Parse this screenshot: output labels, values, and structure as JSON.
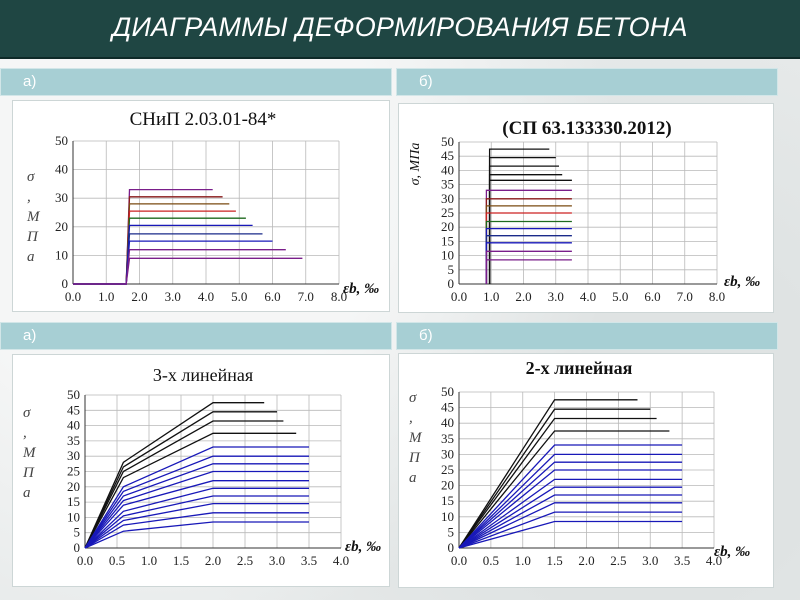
{
  "page": {
    "title": "ДИАГРАММЫ ДЕФОРМИРОВАНИЯ БЕТОНА"
  },
  "labels": {
    "row1_left": "а)",
    "row1_right": "б)",
    "row2_left": "а)",
    "row2_right": "б)"
  },
  "colors": {
    "title_bar": "#1f4643",
    "label_bar": "#a7cfd4",
    "black": "#111111",
    "blue": "#1818b8",
    "purple": "#7a1e8a",
    "dark_red": "#8a1a1a",
    "brown": "#7a4a10",
    "green": "#1e6a1e",
    "red": "#cc2222",
    "navy": "#1a2a8a"
  },
  "chart_data": [
    {
      "type": "line",
      "title": "СНиП 2.03.01-84*",
      "ylabel": "σ, МПа",
      "xlabel": "εb, ‰",
      "xlim": [
        0,
        8
      ],
      "ylim": [
        0,
        50
      ],
      "xticks": [
        "0.0",
        "1.0",
        "2.0",
        "3.0",
        "4.0",
        "5.0",
        "6.0",
        "7.0",
        "8.0"
      ],
      "yticks": [
        "0",
        "10",
        "20",
        "30",
        "40",
        "50"
      ],
      "grid": true,
      "series": [
        {
          "color": "purple",
          "values": [
            [
              0,
              0
            ],
            [
              1.6,
              0
            ],
            [
              1.7,
              33
            ],
            [
              4.2,
              33
            ]
          ]
        },
        {
          "color": "dark_red",
          "values": [
            [
              0,
              0
            ],
            [
              1.6,
              0
            ],
            [
              1.7,
              30.5
            ],
            [
              4.5,
              30.5
            ]
          ]
        },
        {
          "color": "brown",
          "values": [
            [
              0,
              0
            ],
            [
              1.6,
              0
            ],
            [
              1.7,
              28
            ],
            [
              4.7,
              28
            ]
          ]
        },
        {
          "color": "red",
          "values": [
            [
              0,
              0
            ],
            [
              1.6,
              0
            ],
            [
              1.7,
              25.5
            ],
            [
              4.9,
              25.5
            ]
          ]
        },
        {
          "color": "green",
          "values": [
            [
              0,
              0
            ],
            [
              1.6,
              0
            ],
            [
              1.7,
              23
            ],
            [
              5.2,
              23
            ]
          ]
        },
        {
          "color": "blue",
          "values": [
            [
              0,
              0
            ],
            [
              1.6,
              0
            ],
            [
              1.7,
              20.5
            ],
            [
              5.4,
              20.5
            ]
          ]
        },
        {
          "color": "navy",
          "values": [
            [
              0,
              0
            ],
            [
              1.6,
              0
            ],
            [
              1.7,
              17.5
            ],
            [
              5.7,
              17.5
            ]
          ]
        },
        {
          "color": "blue",
          "values": [
            [
              0,
              0
            ],
            [
              1.6,
              0
            ],
            [
              1.7,
              15
            ],
            [
              6.0,
              15
            ]
          ]
        },
        {
          "color": "purple",
          "values": [
            [
              0,
              0
            ],
            [
              1.6,
              0
            ],
            [
              1.7,
              12
            ],
            [
              6.4,
              12
            ]
          ]
        },
        {
          "color": "purple",
          "values": [
            [
              0,
              0
            ],
            [
              1.6,
              0
            ],
            [
              1.7,
              9
            ],
            [
              6.9,
              9
            ]
          ]
        }
      ]
    },
    {
      "type": "line",
      "title": "(СП 63.133330.2012)",
      "ylabel": "σ, МПа",
      "xlabel": "εb, ‰",
      "xlim": [
        0,
        8
      ],
      "ylim": [
        0,
        50
      ],
      "xticks": [
        "0.0",
        "1.0",
        "2.0",
        "3.0",
        "4.0",
        "5.0",
        "6.0",
        "7.0",
        "8.0"
      ],
      "yticks": [
        "0",
        "5",
        "10",
        "15",
        "20",
        "25",
        "30",
        "35",
        "40",
        "45",
        "50"
      ],
      "grid": true,
      "series": [
        {
          "color": "black",
          "values": [
            [
              0.95,
              0
            ],
            [
              0.95,
              47.5
            ],
            [
              2.8,
              47.5
            ]
          ]
        },
        {
          "color": "black",
          "values": [
            [
              0.95,
              0
            ],
            [
              0.95,
              44.5
            ],
            [
              3.0,
              44.5
            ]
          ]
        },
        {
          "color": "black",
          "values": [
            [
              0.95,
              0
            ],
            [
              0.95,
              41.5
            ],
            [
              3.1,
              41.5
            ]
          ]
        },
        {
          "color": "black",
          "values": [
            [
              0.95,
              0
            ],
            [
              0.95,
              38.5
            ],
            [
              3.2,
              38.5
            ]
          ]
        },
        {
          "color": "black",
          "values": [
            [
              0.95,
              0
            ],
            [
              0.95,
              36.5
            ],
            [
              3.5,
              36.5
            ]
          ]
        },
        {
          "color": "purple",
          "values": [
            [
              0.85,
              0
            ],
            [
              0.85,
              33
            ],
            [
              3.5,
              33
            ]
          ]
        },
        {
          "color": "dark_red",
          "values": [
            [
              0.85,
              0
            ],
            [
              0.85,
              30
            ],
            [
              3.5,
              30
            ]
          ]
        },
        {
          "color": "brown",
          "values": [
            [
              0.85,
              0
            ],
            [
              0.85,
              27.5
            ],
            [
              3.5,
              27.5
            ]
          ]
        },
        {
          "color": "red",
          "values": [
            [
              0.85,
              0
            ],
            [
              0.85,
              25
            ],
            [
              3.5,
              25
            ]
          ]
        },
        {
          "color": "green",
          "values": [
            [
              0.85,
              0
            ],
            [
              0.85,
              22
            ],
            [
              3.5,
              22
            ]
          ]
        },
        {
          "color": "blue",
          "values": [
            [
              0.85,
              0
            ],
            [
              0.85,
              19.5
            ],
            [
              3.5,
              19.5
            ]
          ]
        },
        {
          "color": "navy",
          "values": [
            [
              0.85,
              0
            ],
            [
              0.85,
              17
            ],
            [
              3.5,
              17
            ]
          ]
        },
        {
          "color": "blue",
          "values": [
            [
              0.85,
              0
            ],
            [
              0.85,
              14.5
            ],
            [
              3.5,
              14.5
            ]
          ]
        },
        {
          "color": "purple",
          "values": [
            [
              0.85,
              0
            ],
            [
              0.85,
              11.5
            ],
            [
              3.5,
              11.5
            ]
          ]
        },
        {
          "color": "purple",
          "values": [
            [
              0.85,
              0
            ],
            [
              0.85,
              8.5
            ],
            [
              3.5,
              8.5
            ]
          ]
        }
      ]
    },
    {
      "type": "line",
      "title": "3-х линейная",
      "ylabel": "σ, МПа",
      "xlabel": "εb, ‰",
      "xlim": [
        0,
        4
      ],
      "ylim": [
        0,
        50
      ],
      "xticks": [
        "0.0",
        "0.5",
        "1.0",
        "1.5",
        "2.0",
        "2.5",
        "3.0",
        "3.5",
        "4.0"
      ],
      "yticks": [
        "0",
        "5",
        "10",
        "15",
        "20",
        "25",
        "30",
        "35",
        "40",
        "45",
        "50"
      ],
      "grid": true,
      "series": [
        {
          "color": "black",
          "values": [
            [
              0,
              0
            ],
            [
              0.6,
              28
            ],
            [
              2.0,
              47.5
            ],
            [
              2.8,
              47.5
            ]
          ]
        },
        {
          "color": "black",
          "values": [
            [
              0,
              0
            ],
            [
              0.6,
              26.5
            ],
            [
              2.0,
              44.5
            ],
            [
              3.0,
              44.5
            ]
          ]
        },
        {
          "color": "black",
          "values": [
            [
              0,
              0
            ],
            [
              0.6,
              25
            ],
            [
              2.0,
              41.5
            ],
            [
              3.1,
              41.5
            ]
          ]
        },
        {
          "color": "black",
          "values": [
            [
              0,
              0
            ],
            [
              0.6,
              23
            ],
            [
              2.0,
              37.5
            ],
            [
              3.3,
              37.5
            ]
          ]
        },
        {
          "color": "blue",
          "values": [
            [
              0,
              0
            ],
            [
              0.6,
              20
            ],
            [
              2.0,
              33
            ],
            [
              3.5,
              33
            ]
          ]
        },
        {
          "color": "blue",
          "values": [
            [
              0,
              0
            ],
            [
              0.6,
              18.5
            ],
            [
              2.0,
              30
            ],
            [
              3.5,
              30
            ]
          ]
        },
        {
          "color": "blue",
          "values": [
            [
              0,
              0
            ],
            [
              0.6,
              17
            ],
            [
              2.0,
              27.5
            ],
            [
              3.5,
              27.5
            ]
          ]
        },
        {
          "color": "blue",
          "values": [
            [
              0,
              0
            ],
            [
              0.6,
              15.5
            ],
            [
              2.0,
              25
            ],
            [
              3.5,
              25
            ]
          ]
        },
        {
          "color": "blue",
          "values": [
            [
              0,
              0
            ],
            [
              0.6,
              14
            ],
            [
              2.0,
              22
            ],
            [
              3.5,
              22
            ]
          ]
        },
        {
          "color": "blue",
          "values": [
            [
              0,
              0
            ],
            [
              0.6,
              12
            ],
            [
              2.0,
              19.5
            ],
            [
              3.5,
              19.5
            ]
          ]
        },
        {
          "color": "blue",
          "values": [
            [
              0,
              0
            ],
            [
              0.6,
              10.5
            ],
            [
              2.0,
              17
            ],
            [
              3.5,
              17
            ]
          ]
        },
        {
          "color": "blue",
          "values": [
            [
              0,
              0
            ],
            [
              0.6,
              9
            ],
            [
              2.0,
              14.5
            ],
            [
              3.5,
              14.5
            ]
          ]
        },
        {
          "color": "blue",
          "values": [
            [
              0,
              0
            ],
            [
              0.6,
              7.5
            ],
            [
              2.0,
              11.5
            ],
            [
              3.5,
              11.5
            ]
          ]
        },
        {
          "color": "blue",
          "values": [
            [
              0,
              0
            ],
            [
              0.6,
              5.5
            ],
            [
              2.0,
              8.5
            ],
            [
              3.5,
              8.5
            ]
          ]
        }
      ]
    },
    {
      "type": "line",
      "title": "2-х линейная",
      "ylabel": "σ, МПа",
      "xlabel": "εb, ‰",
      "xlim": [
        0,
        4
      ],
      "ylim": [
        0,
        50
      ],
      "xticks": [
        "0.0",
        "0.5",
        "1.0",
        "1.5",
        "2.0",
        "2.5",
        "3.0",
        "3.5",
        "4.0"
      ],
      "yticks": [
        "0",
        "5",
        "10",
        "15",
        "20",
        "25",
        "30",
        "35",
        "40",
        "45",
        "50"
      ],
      "grid": true,
      "series": [
        {
          "color": "black",
          "values": [
            [
              0,
              0
            ],
            [
              1.5,
              47.5
            ],
            [
              2.8,
              47.5
            ]
          ]
        },
        {
          "color": "black",
          "values": [
            [
              0,
              0
            ],
            [
              1.5,
              44.5
            ],
            [
              3.0,
              44.5
            ]
          ]
        },
        {
          "color": "black",
          "values": [
            [
              0,
              0
            ],
            [
              1.5,
              41.5
            ],
            [
              3.1,
              41.5
            ]
          ]
        },
        {
          "color": "black",
          "values": [
            [
              0,
              0
            ],
            [
              1.5,
              37.5
            ],
            [
              3.3,
              37.5
            ]
          ]
        },
        {
          "color": "blue",
          "values": [
            [
              0,
              0
            ],
            [
              1.5,
              33
            ],
            [
              3.5,
              33
            ]
          ]
        },
        {
          "color": "blue",
          "values": [
            [
              0,
              0
            ],
            [
              1.5,
              30
            ],
            [
              3.5,
              30
            ]
          ]
        },
        {
          "color": "blue",
          "values": [
            [
              0,
              0
            ],
            [
              1.5,
              27.5
            ],
            [
              3.5,
              27.5
            ]
          ]
        },
        {
          "color": "blue",
          "values": [
            [
              0,
              0
            ],
            [
              1.5,
              25
            ],
            [
              3.5,
              25
            ]
          ]
        },
        {
          "color": "blue",
          "values": [
            [
              0,
              0
            ],
            [
              1.5,
              22
            ],
            [
              3.5,
              22
            ]
          ]
        },
        {
          "color": "blue",
          "values": [
            [
              0,
              0
            ],
            [
              1.5,
              19.5
            ],
            [
              3.5,
              19.5
            ]
          ]
        },
        {
          "color": "blue",
          "values": [
            [
              0,
              0
            ],
            [
              1.5,
              17
            ],
            [
              3.5,
              17
            ]
          ]
        },
        {
          "color": "blue",
          "values": [
            [
              0,
              0
            ],
            [
              1.5,
              14.5
            ],
            [
              3.5,
              14.5
            ]
          ]
        },
        {
          "color": "blue",
          "values": [
            [
              0,
              0
            ],
            [
              1.5,
              11.5
            ],
            [
              3.5,
              11.5
            ]
          ]
        },
        {
          "color": "blue",
          "values": [
            [
              0,
              0
            ],
            [
              1.5,
              8.5
            ],
            [
              3.5,
              8.5
            ]
          ]
        }
      ]
    }
  ]
}
